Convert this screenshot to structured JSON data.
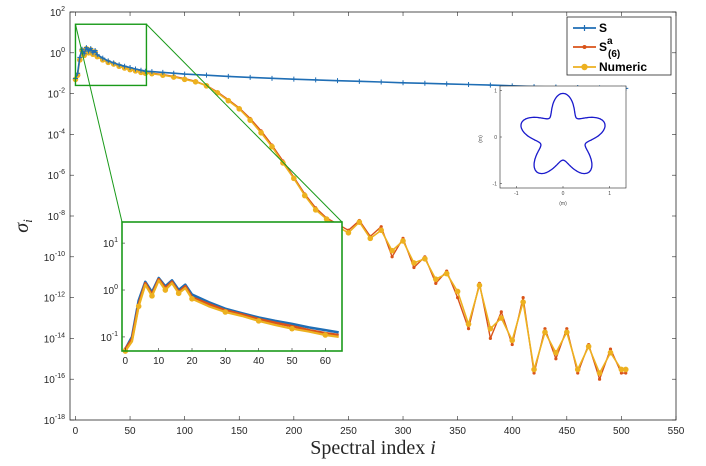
{
  "chart_data": {
    "type": "line",
    "title": "",
    "xlabel": "Spectral index",
    "xlabel_var": "i",
    "ylabel": "σ",
    "ylabel_sub": "i",
    "xlim": [
      -5,
      550
    ],
    "ylim_log10": [
      -18,
      2
    ],
    "yscale": "log",
    "x_ticks": [
      0,
      50,
      100,
      150,
      200,
      250,
      300,
      350,
      400,
      450,
      500,
      550
    ],
    "y_ticks_exp": [
      2,
      0,
      -2,
      -4,
      -6,
      -8,
      -10,
      -12,
      -14,
      -16,
      -18
    ],
    "grid": false,
    "legend_position": "top-right",
    "colors": {
      "S": "#1f6eb5",
      "S6": "#d95319",
      "Numeric": "#edb120",
      "inset_box": "#1a9a1a",
      "shape": "#1a1acc"
    },
    "legend": [
      {
        "key": "S",
        "label": "S",
        "sup": "",
        "sub": ""
      },
      {
        "key": "S6",
        "label": "S",
        "sup": "a",
        "sub": "(6)"
      },
      {
        "key": "Numeric",
        "label": "Numeric",
        "sup": "",
        "sub": ""
      }
    ],
    "series": [
      {
        "name": "S",
        "key": "S",
        "x": [
          0,
          2,
          4,
          6,
          8,
          10,
          12,
          14,
          16,
          18,
          20,
          25,
          30,
          35,
          40,
          45,
          50,
          55,
          60,
          64,
          70,
          80,
          90,
          100,
          120,
          140,
          160,
          180,
          200,
          220,
          240,
          260,
          280,
          300,
          320,
          340,
          360,
          380,
          400,
          420,
          440,
          460,
          480,
          500,
          504
        ],
        "y": [
          0.055,
          0.1,
          0.6,
          1.5,
          0.9,
          1.8,
          1.2,
          1.6,
          1.0,
          1.3,
          0.8,
          0.55,
          0.4,
          0.32,
          0.26,
          0.22,
          0.19,
          0.16,
          0.14,
          0.125,
          0.12,
          0.11,
          0.1,
          0.09,
          0.08,
          0.07,
          0.062,
          0.056,
          0.051,
          0.047,
          0.043,
          0.04,
          0.037,
          0.034,
          0.032,
          0.03,
          0.028,
          0.026,
          0.024,
          0.022,
          0.021,
          0.02,
          0.019,
          0.018,
          0.018
        ]
      },
      {
        "name": "S(6)",
        "key": "S6",
        "x": [
          0,
          2,
          4,
          6,
          8,
          10,
          12,
          14,
          16,
          18,
          20,
          25,
          30,
          35,
          40,
          45,
          50,
          55,
          60,
          64,
          70,
          80,
          90,
          100,
          110,
          120,
          130,
          140,
          150,
          160,
          170,
          180,
          190,
          200,
          210,
          220,
          230,
          240,
          250,
          260,
          270,
          280,
          290,
          300,
          310,
          320,
          330,
          340,
          350,
          360,
          370,
          380,
          390,
          400,
          410,
          420,
          430,
          440,
          450,
          460,
          470,
          480,
          490,
          500,
          504
        ],
        "y": [
          0.055,
          0.09,
          0.5,
          1.4,
          0.8,
          1.7,
          1.1,
          1.5,
          0.9,
          1.2,
          0.7,
          0.5,
          0.37,
          0.3,
          0.24,
          0.2,
          0.17,
          0.14,
          0.12,
          0.11,
          0.1,
          0.085,
          0.07,
          0.055,
          0.04,
          0.025,
          0.012,
          0.005,
          0.002,
          0.0006,
          0.00015,
          3e-05,
          5e-06,
          8e-07,
          1.2e-07,
          2.5e-08,
          8e-09,
          4e-09,
          2e-09,
          6e-09,
          1e-09,
          3e-09,
          1e-10,
          8e-10,
          3e-11,
          1e-10,
          5e-12,
          2e-11,
          1e-12,
          3e-14,
          5e-12,
          1e-14,
          2e-13,
          5e-15,
          1e-12,
          2e-16,
          3e-14,
          1e-15,
          3e-14,
          2e-16,
          5e-15,
          1e-16,
          3e-15,
          2e-16,
          2e-16
        ]
      },
      {
        "name": "Numeric",
        "key": "Numeric",
        "x": [
          0,
          2,
          4,
          6,
          8,
          10,
          12,
          14,
          16,
          18,
          20,
          25,
          30,
          35,
          40,
          45,
          50,
          55,
          60,
          64,
          70,
          80,
          90,
          100,
          110,
          120,
          130,
          140,
          150,
          160,
          170,
          180,
          190,
          200,
          210,
          220,
          230,
          240,
          250,
          260,
          270,
          280,
          290,
          300,
          310,
          320,
          330,
          340,
          350,
          360,
          370,
          380,
          390,
          400,
          410,
          420,
          430,
          440,
          450,
          460,
          470,
          480,
          490,
          500,
          504
        ],
        "y": [
          0.05,
          0.08,
          0.45,
          1.3,
          0.75,
          1.6,
          1.0,
          1.4,
          0.85,
          1.1,
          0.65,
          0.45,
          0.34,
          0.28,
          0.22,
          0.18,
          0.15,
          0.13,
          0.11,
          0.1,
          0.095,
          0.08,
          0.065,
          0.05,
          0.038,
          0.024,
          0.011,
          0.0045,
          0.0018,
          0.0005,
          0.00012,
          2.5e-05,
          4e-06,
          7e-07,
          1e-07,
          2e-08,
          7e-09,
          3e-09,
          1.5e-09,
          5e-09,
          8e-10,
          2e-09,
          2e-10,
          6e-10,
          5e-11,
          8e-11,
          8e-12,
          1.5e-11,
          2e-12,
          5e-14,
          4e-12,
          3e-14,
          1e-13,
          8e-15,
          6e-13,
          3e-16,
          2e-14,
          2e-15,
          2e-14,
          3e-16,
          4e-15,
          2e-16,
          2e-15,
          3e-16,
          3e-16
        ]
      }
    ],
    "inset": {
      "xlim": [
        -1,
        65
      ],
      "ylim_log10": [
        -1.3,
        1.45
      ],
      "x_ticks": [
        0,
        10,
        20,
        30,
        40,
        50,
        60
      ],
      "y_ticks_exp": [
        1,
        0,
        -1
      ],
      "source_box_x": [
        0,
        65
      ],
      "source_box_y_log10": [
        -1.6,
        1.4
      ]
    },
    "shape_inset": {
      "x_ticks": [
        "-1",
        "0",
        "1"
      ],
      "y_ticks": [
        "1",
        "0",
        "-1"
      ],
      "xlabel": "(m)",
      "ylabel": "(m)",
      "lobes": 5,
      "r0": 0.72,
      "amp": 0.22
    }
  }
}
